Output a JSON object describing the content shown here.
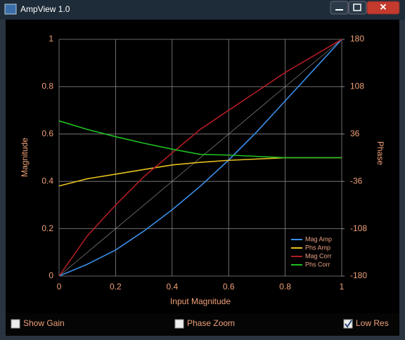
{
  "window": {
    "title": "AmpView 1.0"
  },
  "chart_data": {
    "type": "line",
    "x_label": "Input Magnitude",
    "y_label": "Magnitude",
    "y2_label": "Phase",
    "x": [
      0,
      0.1,
      0.2,
      0.3,
      0.4,
      0.5,
      0.6,
      0.7,
      0.8,
      0.9,
      1
    ],
    "xlim": [
      0,
      1
    ],
    "xticks": [
      0,
      0.2,
      0.4,
      0.6,
      0.8,
      1
    ],
    "ylim": [
      0,
      1
    ],
    "yticks": [
      0,
      0.2,
      0.4,
      0.6,
      0.8,
      1
    ],
    "y2lim": [
      -180,
      180
    ],
    "y2ticks": [
      -180,
      -108,
      -36,
      36,
      108,
      180
    ],
    "grid": true,
    "legend": "lower right",
    "series": [
      {
        "name": "Mag Amp",
        "color": "#3b8fe8",
        "values": [
          0,
          0.05,
          0.11,
          0.19,
          0.28,
          0.38,
          0.49,
          0.61,
          0.74,
          0.87,
          1
        ]
      },
      {
        "name": "Phs Amp",
        "color": "#e8c020",
        "axis": "y2",
        "values": [
          -43,
          -32,
          -25,
          -18,
          -11,
          -7,
          -4,
          -2,
          0,
          0,
          0
        ]
      },
      {
        "name": "Mag Corr",
        "color": "#b01c24",
        "values": [
          0,
          0.17,
          0.3,
          0.42,
          0.52,
          0.62,
          0.7,
          0.78,
          0.86,
          0.93,
          1
        ]
      },
      {
        "name": "Phs Corr",
        "color": "#20c020",
        "axis": "y2",
        "values": [
          56,
          43,
          32,
          22,
          13,
          5,
          4,
          2,
          0,
          0,
          0
        ]
      }
    ]
  },
  "controls": [
    {
      "label": "Show Gain",
      "checked": false
    },
    {
      "label": "Phase Zoom",
      "checked": false
    },
    {
      "label": "Low Res",
      "checked": true
    }
  ]
}
